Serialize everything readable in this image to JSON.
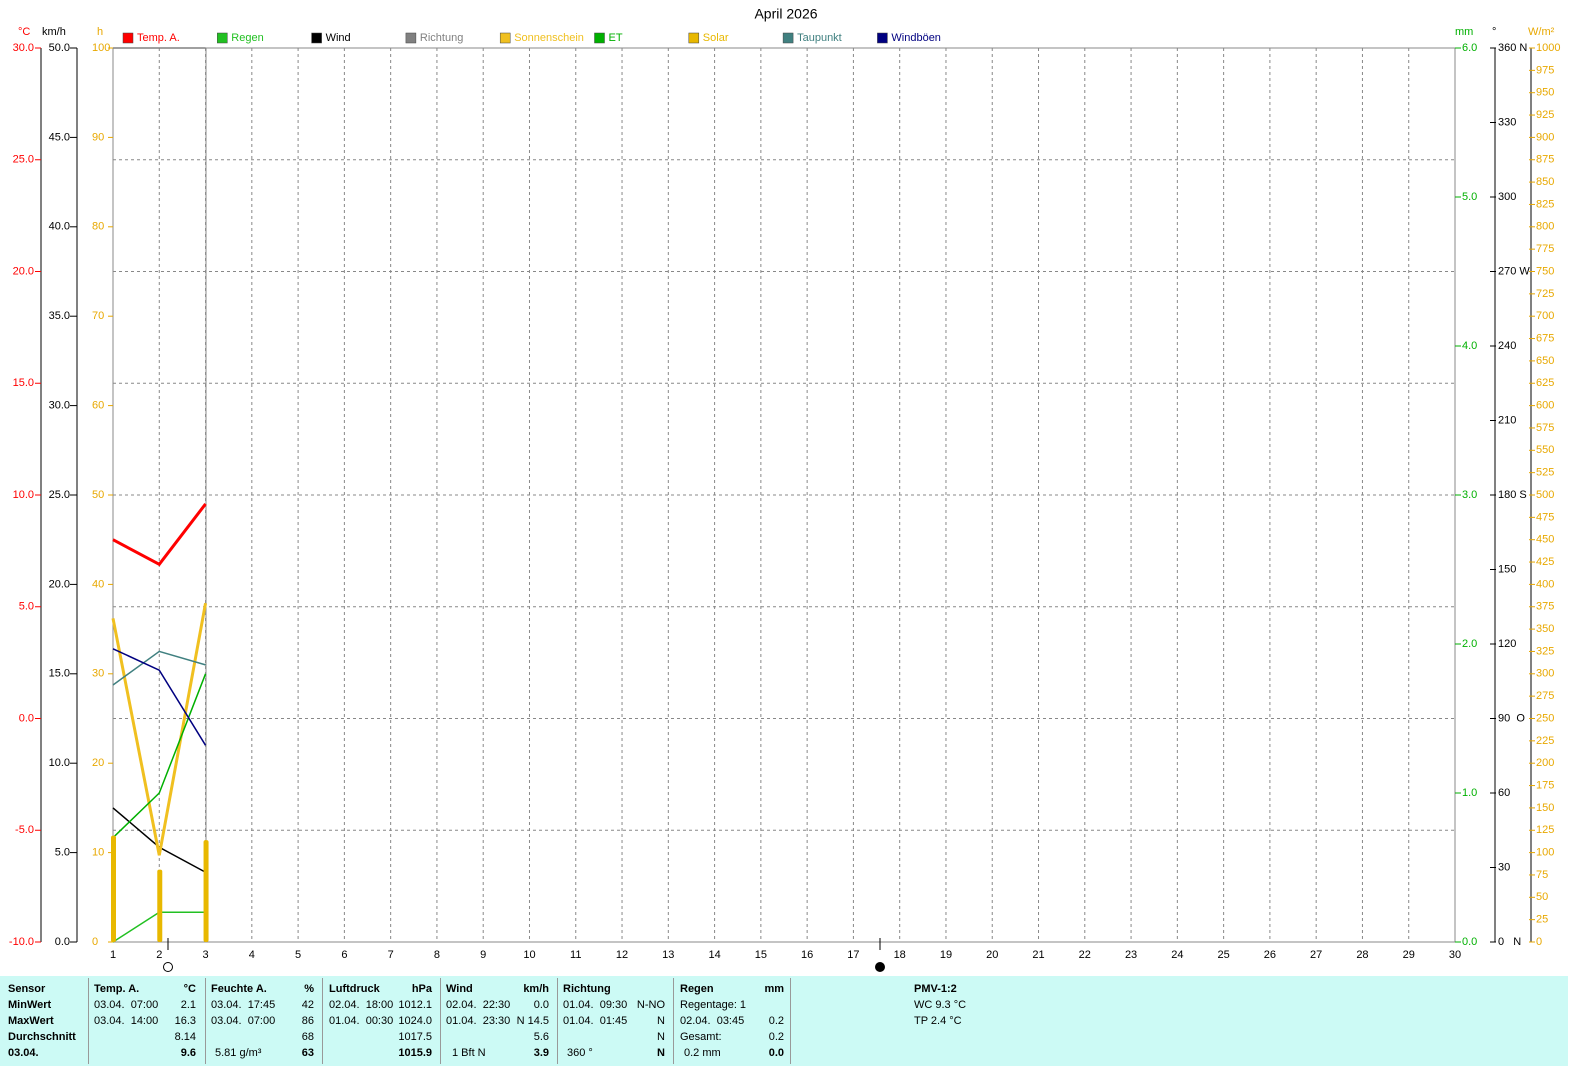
{
  "chart_data": {
    "type": "line",
    "title": "April 2026",
    "x": [
      1,
      2,
      3
    ],
    "xlim": [
      1,
      30
    ],
    "xticks": [
      1,
      2,
      3,
      4,
      5,
      6,
      7,
      8,
      9,
      10,
      11,
      12,
      13,
      14,
      15,
      16,
      17,
      18,
      19,
      20,
      21,
      22,
      23,
      24,
      25,
      26,
      27,
      28,
      29,
      30
    ],
    "grid": true,
    "axes": [
      {
        "unit": "°C",
        "color": "#ff0000",
        "lim": [
          -10,
          30
        ],
        "ticks": [
          {
            "value": -10,
            "label": "-10.0"
          },
          {
            "value": -5,
            "label": "-5.0"
          },
          {
            "value": 0,
            "label": "0.0"
          },
          {
            "value": 5,
            "label": "5.0"
          },
          {
            "value": 10,
            "label": "10.0"
          },
          {
            "value": 15,
            "label": "15.0"
          },
          {
            "value": 20,
            "label": "20.0"
          },
          {
            "value": 25,
            "label": "25.0"
          },
          {
            "value": 30,
            "label": "30.0"
          }
        ]
      },
      {
        "unit": "km/h",
        "color": "#000000",
        "lim": [
          0,
          50
        ],
        "ticks": [
          {
            "value": 0,
            "label": "0.0"
          },
          {
            "value": 5,
            "label": "5.0"
          },
          {
            "value": 10,
            "label": "10.0"
          },
          {
            "value": 15,
            "label": "15.0"
          },
          {
            "value": 20,
            "label": "20.0"
          },
          {
            "value": 25,
            "label": "25.0"
          },
          {
            "value": 30,
            "label": "30.0"
          },
          {
            "value": 35,
            "label": "35.0"
          },
          {
            "value": 40,
            "label": "40.0"
          },
          {
            "value": 45,
            "label": "45.0"
          },
          {
            "value": 50,
            "label": "50.0"
          }
        ]
      },
      {
        "unit": "h",
        "color": "#e8a800",
        "lim": [
          0,
          100
        ],
        "ticks": [
          0,
          10,
          20,
          30,
          40,
          50,
          60,
          70,
          80,
          90,
          100
        ]
      },
      {
        "unit": "mm",
        "color": "#00b000",
        "lim": [
          0,
          6
        ],
        "ticks": [
          {
            "value": 0,
            "label": "0.0"
          },
          {
            "value": 1,
            "label": "1.0"
          },
          {
            "value": 2,
            "label": "2.0"
          },
          {
            "value": 3,
            "label": "3.0"
          },
          {
            "value": 4,
            "label": "4.0"
          },
          {
            "value": 5,
            "label": "5.0"
          },
          {
            "value": 6,
            "label": "6.0"
          }
        ]
      },
      {
        "unit": "°",
        "color": "#000000",
        "lim": [
          0,
          360
        ],
        "ticks": [
          {
            "value": 0,
            "label": "0   N"
          },
          30,
          60,
          {
            "value": 90,
            "label": "90  O"
          },
          120,
          150,
          {
            "value": 180,
            "label": "180 S"
          },
          210,
          240,
          {
            "value": 270,
            "label": "270 W"
          },
          300,
          330,
          {
            "value": 360,
            "label": "360 N"
          }
        ]
      },
      {
        "unit": "W/m²",
        "color": "#e8a800",
        "lim": [
          0,
          1000
        ],
        "ticks": [
          0,
          25,
          50,
          75,
          100,
          125,
          150,
          175,
          200,
          225,
          250,
          275,
          300,
          325,
          350,
          375,
          400,
          425,
          450,
          475,
          500,
          525,
          550,
          575,
          600,
          625,
          650,
          675,
          700,
          725,
          750,
          775,
          800,
          825,
          850,
          875,
          900,
          925,
          950,
          975,
          1000
        ]
      }
    ],
    "series": [
      {
        "name": "Temp. A.",
        "color": "#ff0000",
        "axis": 0,
        "line_width": 3,
        "values": [
          8.0,
          6.9,
          9.6
        ]
      },
      {
        "name": "Regen",
        "color": "#22c022",
        "axis": 3,
        "values": [
          0,
          0.2,
          0.2
        ]
      },
      {
        "name": "Wind",
        "color": "#000000",
        "axis": 1,
        "values": [
          7.5,
          5.3,
          3.9
        ]
      },
      {
        "name": "Richtung",
        "color": "#808080",
        "axis": 4,
        "values": [
          360,
          360,
          360
        ]
      },
      {
        "name": "Sonnenschein",
        "color": "#f0c020",
        "axis": 2,
        "line_width": 3,
        "values": [
          36.2,
          9.7,
          37.9
        ]
      },
      {
        "name": "ET",
        "color": "#00b000",
        "axis": 3,
        "values": [
          0.7,
          1.0,
          1.8
        ]
      },
      {
        "name": "Solar",
        "color": "#e8b800",
        "axis": 5,
        "kind": "bar",
        "values": [
          119,
          81,
          114
        ]
      },
      {
        "name": "Taupunkt",
        "color": "#408080",
        "axis": 0,
        "values": [
          1.5,
          3.0,
          2.4
        ]
      },
      {
        "name": "Windböen",
        "color": "#000080",
        "axis": 1,
        "values": [
          16.4,
          15.2,
          11.0
        ]
      }
    ]
  },
  "table": {
    "sensor": [
      "Sensor",
      "MinWert",
      "MaxWert",
      "Durchschnitt",
      "03.04."
    ],
    "temp": {
      "title": "Temp. A.",
      "unit": "°C",
      "min": [
        "03.04.  07:00",
        "2.1"
      ],
      "max": [
        "03.04.  14:00",
        "16.3"
      ],
      "avg": "8.14",
      "today": "9.6"
    },
    "humidity": {
      "title": "Feuchte A.",
      "unit": "%",
      "min": [
        "03.04.  17:45",
        "42"
      ],
      "max": [
        "03.04.  07:00",
        "86"
      ],
      "avg": "68",
      "abs": "5.81 g/m³",
      "today": "63"
    },
    "pressure": {
      "title": "Luftdruck",
      "unit": "hPa",
      "min": [
        "02.04.  18:00",
        "1012.1"
      ],
      "max": [
        "01.04.  00:30",
        "1024.0"
      ],
      "avg": "1017.5",
      "today": "1015.9"
    },
    "wind": {
      "title": "Wind",
      "unit": "km/h",
      "min": [
        "02.04.  22:30",
        "0.0"
      ],
      "max": [
        "01.04.  23:30",
        "N 14.5"
      ],
      "avg": "5.6",
      "bft": "1 Bft N",
      "today": "3.9"
    },
    "direction": {
      "title": "Richtung",
      "min": [
        "01.04.  09:30",
        "N-NO"
      ],
      "max": [
        "01.04.  01:45",
        "N"
      ],
      "avg": "N",
      "deg": "360 °",
      "today": "N"
    },
    "rain": {
      "title": "Regen",
      "unit": "mm",
      "days": "Regentage: 1",
      "max": [
        "02.04.  03:45",
        "0.2"
      ],
      "total_label": "Gesamt:",
      "total": "0.2",
      "today_label": "0.2 mm",
      "today": "0.0"
    },
    "pmv": {
      "title": "PMV-1:2",
      "wc": "WC 9.3 °C",
      "tp": "TP 2.4 °C"
    }
  }
}
